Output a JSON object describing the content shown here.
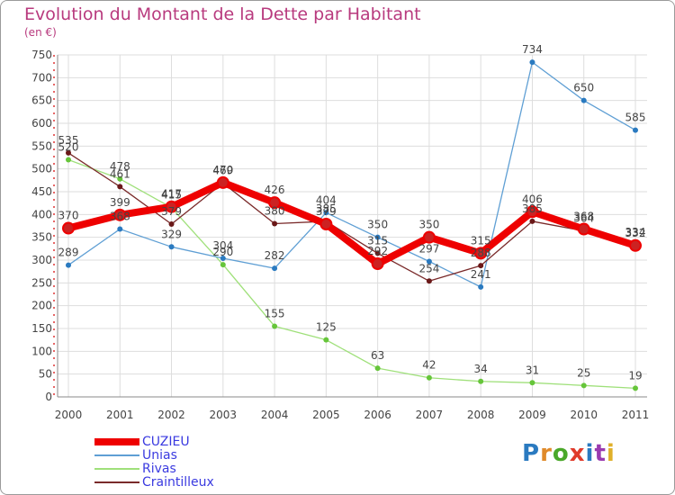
{
  "title": "Evolution du Montant de la Dette par Habitant",
  "unit": "(en €)",
  "logo": "Proxiti",
  "chart_data": {
    "type": "line",
    "ylim": [
      0,
      750
    ],
    "yticks": [
      0,
      50,
      100,
      150,
      200,
      250,
      300,
      350,
      400,
      450,
      500,
      550,
      600,
      650,
      700,
      750
    ],
    "categories": [
      "2000",
      "2001",
      "2002",
      "2003",
      "2004",
      "2005",
      "2006",
      "2007",
      "2008",
      "2009",
      "2010",
      "2011"
    ],
    "grid": true,
    "legend_position": "bottom-left",
    "series": [
      {
        "name": "CUZIEU",
        "color": "#ee0000",
        "marker": "#cc2222",
        "values": [
          370,
          399,
          417,
          470,
          426,
          379,
          292,
          350,
          315,
          406,
          368,
          332
        ]
      },
      {
        "name": "Unias",
        "color": "#5f9fd4",
        "marker": "#2a7ac0",
        "values": [
          289,
          368,
          329,
          304,
          282,
          404,
          350,
          297,
          241,
          734,
          650,
          585
        ]
      },
      {
        "name": "Rivas",
        "color": "#9fe07a",
        "marker": "#66c53a",
        "values": [
          520,
          478,
          415,
          290,
          155,
          125,
          63,
          42,
          34,
          31,
          25,
          19
        ]
      },
      {
        "name": "Craintilleux",
        "color": "#7a2a2a",
        "marker": "#6a1818",
        "values": [
          535,
          461,
          379,
          469,
          380,
          385,
          315,
          254,
          288,
          385,
          364,
          334
        ]
      }
    ]
  }
}
